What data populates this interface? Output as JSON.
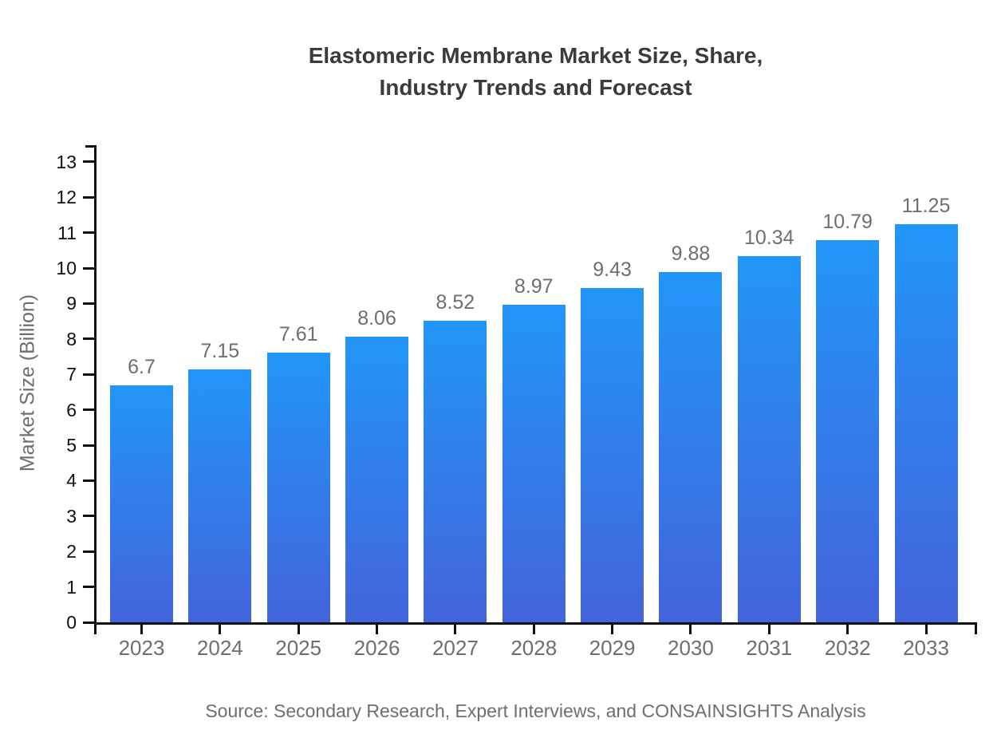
{
  "header": {
    "title": "Elastomeric Membrane Market Size, Share,\nIndustry Trends and Forecast"
  },
  "footer": {
    "source": "Source: Secondary Research, Expert Interviews, and CONSAINSIGHTS Analysis"
  },
  "colors": {
    "bar_gradient_top": "#2196F8",
    "bar_gradient_bottom": "#4364DB",
    "axis": "#111111",
    "title_text": "#3b3b3b",
    "muted_text": "#6e6e6e",
    "y_tick_text": "#111111",
    "background": "#ffffff"
  },
  "chart_data": {
    "type": "bar",
    "title": "Elastomeric Membrane Market Size, Share, Industry Trends and Forecast",
    "categories": [
      "2023",
      "2024",
      "2025",
      "2026",
      "2027",
      "2028",
      "2029",
      "2030",
      "2031",
      "2032",
      "2033"
    ],
    "values": [
      6.7,
      7.15,
      7.61,
      8.06,
      8.52,
      8.97,
      9.43,
      9.88,
      10.34,
      10.79,
      11.25
    ],
    "value_labels": [
      "6.7",
      "7.15",
      "7.61",
      "8.06",
      "8.52",
      "8.97",
      "9.43",
      "9.88",
      "10.34",
      "10.79",
      "11.25"
    ],
    "xlabel": "",
    "ylabel": "Market Size (Billion)",
    "ylim": [
      0,
      13.47
    ],
    "yticks": [
      0,
      1,
      2,
      3,
      4,
      5,
      6,
      7,
      8,
      9,
      10,
      11,
      12,
      13
    ],
    "grid": false,
    "legend": null,
    "source": "Source: Secondary Research, Expert Interviews, and CONSAINSIGHTS Analysis"
  }
}
